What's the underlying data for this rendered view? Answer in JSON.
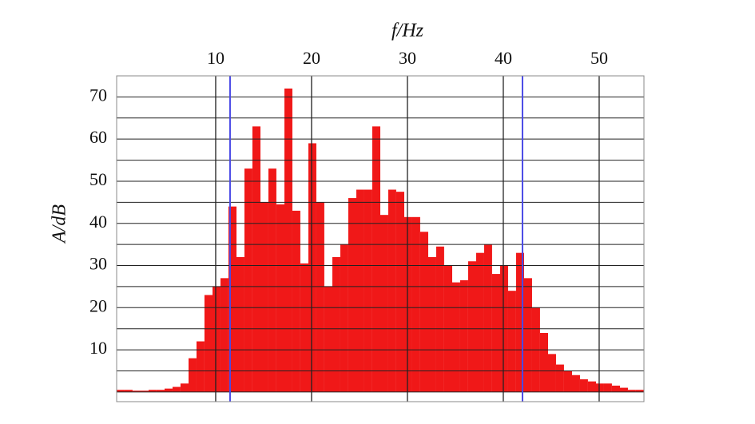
{
  "chart_data": {
    "type": "histogram",
    "xlabel": "f/Hz",
    "ylabel": "A/dB",
    "bins": [
      -0.33,
      0.5,
      1.33,
      2.17,
      3.0,
      3.83,
      4.67,
      5.5,
      6.33,
      7.17,
      8.0,
      8.83,
      9.67,
      10.5,
      11.33,
      12.17,
      13.0,
      13.83,
      14.67,
      15.5,
      16.33,
      17.17,
      18.0,
      18.83,
      19.67,
      20.5,
      21.33,
      22.17,
      23.0,
      23.83,
      24.67,
      25.5,
      26.33,
      27.17,
      28.0,
      28.83,
      29.67,
      30.5,
      31.33,
      32.17,
      33.0,
      33.83,
      34.67,
      35.5,
      36.33,
      37.17,
      38.0,
      38.83,
      39.67,
      40.5,
      41.33,
      42.17,
      43.0,
      43.83,
      44.67,
      45.5,
      46.33,
      47.17,
      48.0,
      48.83,
      49.67,
      50.5,
      51.33,
      52.17,
      53.0,
      53.83,
      54.67
    ],
    "values": [
      0.5,
      0.5,
      0.3,
      0.3,
      0.5,
      0.5,
      0.8,
      1.2,
      2,
      8,
      12,
      23,
      25,
      27,
      44,
      32,
      53,
      63,
      45,
      53,
      44.5,
      72,
      43,
      30.5,
      59,
      45,
      25,
      32,
      35,
      46,
      48,
      48,
      63,
      42,
      48,
      47.5,
      41.5,
      41.5,
      38,
      32,
      34.5,
      30,
      26,
      26.5,
      31,
      33,
      35,
      28,
      30,
      24,
      33,
      27,
      20,
      14,
      9,
      6.5,
      5,
      4,
      3,
      2.5,
      2,
      2,
      1.5,
      1,
      0.5,
      0.5
    ],
    "color": "#f01818",
    "xlim": [
      -0.33,
      54.67
    ],
    "ylim": [
      -2.3,
      75
    ],
    "xticks": [
      10,
      20,
      30,
      40,
      50
    ],
    "yticks": [
      10,
      20,
      30,
      40,
      50,
      60,
      70
    ],
    "ygrid": [
      0,
      5,
      10,
      15,
      20,
      25,
      30,
      35,
      40,
      45,
      50,
      55,
      60,
      65,
      70,
      75
    ],
    "vlines": [
      {
        "x": 11.5,
        "color": "#4a4ae6"
      },
      {
        "x": 42,
        "color": "#4a4ae6"
      }
    ],
    "grid": true
  }
}
